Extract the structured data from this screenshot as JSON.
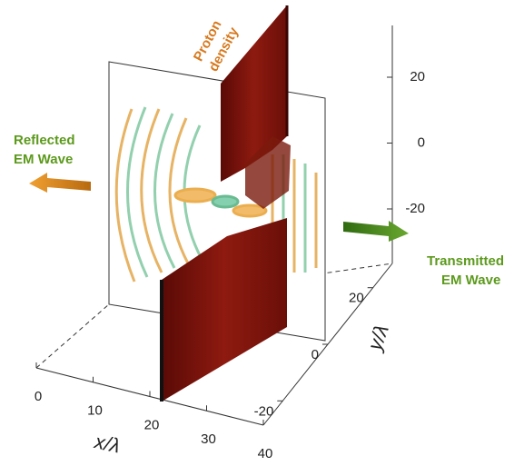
{
  "annotations": {
    "proton": [
      "Proton",
      "density"
    ],
    "reflected": [
      "Reflected",
      "EM Wave"
    ],
    "transmitted": [
      "Transmitted",
      "EM Wave"
    ]
  },
  "axes": {
    "x": {
      "label": "x/λ",
      "ticks": [
        0,
        10,
        20,
        30,
        40
      ]
    },
    "y": {
      "label": "y/λ",
      "ticks": [
        20,
        0,
        -20
      ]
    },
    "z": {
      "ticks": [
        20,
        0,
        -20
      ]
    }
  }
}
